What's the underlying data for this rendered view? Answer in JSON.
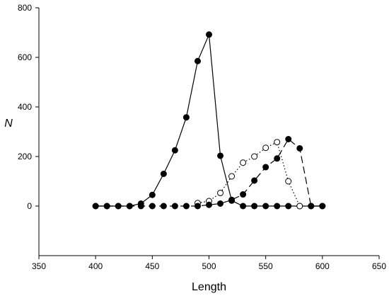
{
  "chart_data": {
    "type": "line",
    "title": "",
    "xlabel": "Length",
    "ylabel": "N",
    "xlim": [
      350,
      650
    ],
    "ylim": [
      -200,
      800
    ],
    "xticks": [
      350,
      400,
      450,
      500,
      550,
      600,
      650
    ],
    "yticks": [
      0,
      200,
      400,
      600,
      800
    ],
    "grid": false,
    "legend": "none",
    "series": [
      {
        "style": "solid",
        "marker": "filled",
        "x": [
          400,
          410,
          420,
          430,
          440,
          450,
          460,
          470,
          480,
          490,
          500,
          510,
          520,
          530,
          540,
          550,
          560,
          570,
          580,
          590,
          600
        ],
        "y": [
          0,
          0,
          0,
          0,
          10,
          45,
          130,
          225,
          358,
          585,
          692,
          203,
          22,
          0,
          0,
          0,
          0,
          0,
          0,
          0,
          0
        ]
      },
      {
        "style": "dotted",
        "marker": "open",
        "x": [
          490,
          500,
          510,
          520,
          530,
          540,
          550,
          560,
          570,
          580
        ],
        "y": [
          12,
          20,
          53,
          120,
          175,
          200,
          235,
          258,
          100,
          0
        ]
      },
      {
        "style": "dashed",
        "marker": "filled",
        "x": [
          400,
          410,
          420,
          430,
          440,
          450,
          460,
          470,
          480,
          490,
          500,
          510,
          520,
          530,
          540,
          550,
          560,
          570,
          580,
          590,
          600
        ],
        "y": [
          0,
          0,
          0,
          0,
          0,
          0,
          0,
          0,
          0,
          0,
          5,
          10,
          25,
          47,
          103,
          157,
          192,
          270,
          233,
          0,
          0
        ]
      }
    ]
  }
}
